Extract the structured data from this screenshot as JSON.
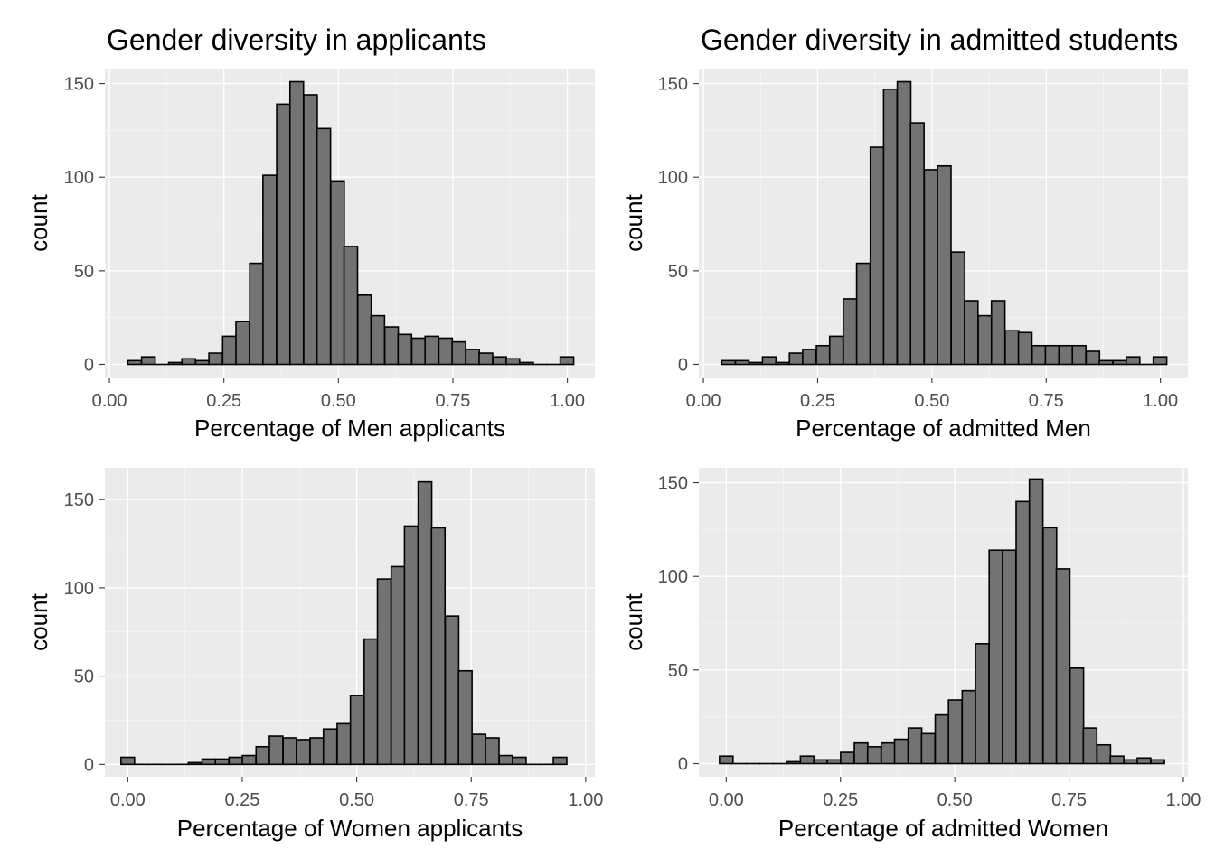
{
  "chart_data": [
    {
      "type": "bar",
      "subtype": "histogram",
      "title": "Gender diversity in applicants",
      "xlabel": "Percentage of Men applicants",
      "ylabel": "count",
      "xlim": [
        -0.01,
        1.06
      ],
      "ylim": [
        -7,
        158
      ],
      "xticks": [
        0.0,
        0.25,
        0.5,
        0.75,
        1.0
      ],
      "xtick_labels": [
        "0.00",
        "0.25",
        "0.50",
        "0.75",
        "1.00"
      ],
      "yticks": [
        0,
        50,
        100,
        150
      ],
      "ytick_labels": [
        "0",
        "50",
        "100",
        "150"
      ],
      "bin_width": 0.0295,
      "bin_centers": [
        0.055,
        0.085,
        0.114,
        0.144,
        0.173,
        0.203,
        0.232,
        0.262,
        0.291,
        0.321,
        0.35,
        0.38,
        0.409,
        0.439,
        0.468,
        0.498,
        0.527,
        0.557,
        0.586,
        0.616,
        0.645,
        0.675,
        0.704,
        0.734,
        0.763,
        0.793,
        0.822,
        0.852,
        0.881,
        0.911,
        0.94,
        0.97,
        0.999
      ],
      "values": [
        2,
        4,
        0,
        1,
        3,
        2,
        6,
        15,
        23,
        54,
        101,
        139,
        151,
        144,
        126,
        98,
        63,
        37,
        26,
        20,
        16,
        14,
        15,
        14,
        12,
        8,
        6,
        4,
        3,
        1,
        0,
        0,
        4
      ],
      "grid": true,
      "legend": "none"
    },
    {
      "type": "bar",
      "subtype": "histogram",
      "title": "Gender diversity in admitted students",
      "xlabel": "Percentage of admitted Men",
      "ylabel": "count",
      "xlim": [
        -0.01,
        1.06
      ],
      "ylim": [
        -7,
        158
      ],
      "xticks": [
        0.0,
        0.25,
        0.5,
        0.75,
        1.0
      ],
      "xtick_labels": [
        "0.00",
        "0.25",
        "0.50",
        "0.75",
        "1.00"
      ],
      "yticks": [
        0,
        50,
        100,
        150
      ],
      "ytick_labels": [
        "0",
        "50",
        "100",
        "150"
      ],
      "bin_width": 0.0295,
      "bin_centers": [
        0.055,
        0.085,
        0.114,
        0.144,
        0.173,
        0.203,
        0.232,
        0.262,
        0.291,
        0.321,
        0.35,
        0.38,
        0.409,
        0.439,
        0.468,
        0.498,
        0.527,
        0.557,
        0.586,
        0.616,
        0.645,
        0.675,
        0.704,
        0.734,
        0.763,
        0.793,
        0.822,
        0.852,
        0.881,
        0.911,
        0.94,
        0.97,
        0.999
      ],
      "values": [
        2,
        2,
        1,
        4,
        1,
        6,
        8,
        10,
        15,
        35,
        54,
        116,
        147,
        151,
        129,
        104,
        106,
        60,
        34,
        26,
        34,
        18,
        17,
        10,
        10,
        10,
        10,
        7,
        2,
        2,
        4,
        0,
        4
      ],
      "grid": true,
      "legend": "none"
    },
    {
      "type": "bar",
      "subtype": "histogram",
      "title": "",
      "xlabel": "Percentage of Women applicants",
      "ylabel": "count",
      "xlim": [
        -0.05,
        1.02
      ],
      "ylim": [
        -7,
        168
      ],
      "xticks": [
        0.0,
        0.25,
        0.5,
        0.75,
        1.0
      ],
      "xtick_labels": [
        "0.00",
        "0.25",
        "0.50",
        "0.75",
        "1.00"
      ],
      "yticks": [
        0,
        50,
        100,
        150
      ],
      "ytick_labels": [
        "0",
        "50",
        "100",
        "150"
      ],
      "bin_width": 0.0295,
      "bin_centers": [
        0.0,
        0.029,
        0.059,
        0.088,
        0.118,
        0.147,
        0.177,
        0.206,
        0.236,
        0.265,
        0.295,
        0.324,
        0.354,
        0.383,
        0.413,
        0.442,
        0.472,
        0.501,
        0.531,
        0.56,
        0.59,
        0.619,
        0.649,
        0.678,
        0.708,
        0.737,
        0.767,
        0.796,
        0.826,
        0.855,
        0.885,
        0.914,
        0.944
      ],
      "values": [
        4,
        0,
        0,
        0,
        0,
        1,
        3,
        3,
        4,
        5,
        10,
        16,
        15,
        14,
        15,
        20,
        23,
        39,
        71,
        105,
        112,
        135,
        160,
        134,
        84,
        53,
        17,
        15,
        5,
        4,
        0,
        0,
        4
      ],
      "grid": true,
      "legend": "none"
    },
    {
      "type": "bar",
      "subtype": "histogram",
      "title": "",
      "xlabel": "Percentage of admitted Women",
      "ylabel": "count",
      "xlim": [
        -0.06,
        1.01
      ],
      "ylim": [
        -7,
        158
      ],
      "xticks": [
        0.0,
        0.25,
        0.5,
        0.75,
        1.0
      ],
      "xtick_labels": [
        "0.00",
        "0.25",
        "0.50",
        "0.75",
        "1.00"
      ],
      "yticks": [
        0,
        50,
        100,
        150
      ],
      "ytick_labels": [
        "0",
        "50",
        "100",
        "150"
      ],
      "bin_width": 0.0295,
      "bin_centers": [
        0.0,
        0.029,
        0.059,
        0.088,
        0.118,
        0.147,
        0.177,
        0.206,
        0.236,
        0.265,
        0.295,
        0.324,
        0.354,
        0.383,
        0.413,
        0.442,
        0.472,
        0.501,
        0.531,
        0.56,
        0.59,
        0.619,
        0.649,
        0.678,
        0.708,
        0.737,
        0.767,
        0.796,
        0.826,
        0.855,
        0.885,
        0.914,
        0.944
      ],
      "values": [
        4,
        0,
        0,
        0,
        0,
        1,
        4,
        2,
        2,
        6,
        11,
        9,
        11,
        13,
        19,
        16,
        26,
        34,
        39,
        64,
        114,
        114,
        140,
        152,
        126,
        104,
        51,
        19,
        10,
        4,
        2,
        3,
        2
      ],
      "grid": true,
      "legend": "none"
    }
  ]
}
